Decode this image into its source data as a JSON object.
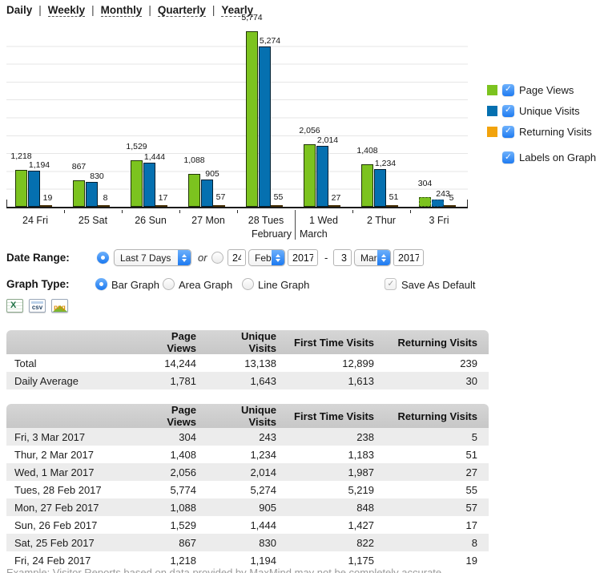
{
  "nav": {
    "separator": "|",
    "items": [
      {
        "label": "Daily",
        "active": true
      },
      {
        "label": "Weekly",
        "active": false
      },
      {
        "label": "Monthly",
        "active": false
      },
      {
        "label": "Quarterly",
        "active": false
      },
      {
        "label": "Yearly",
        "active": false
      }
    ]
  },
  "chart_data": {
    "type": "bar",
    "categories": [
      "24 Fri",
      "25 Sat",
      "26 Sun",
      "27 Mon",
      "28 Tues",
      "1 Wed",
      "2 Thur",
      "3 Fri"
    ],
    "month_labels": [
      "",
      "",
      "",
      "",
      "February",
      "March",
      "",
      ""
    ],
    "series": [
      {
        "name": "Page Views",
        "color": "#7cc31f",
        "values": [
          1218,
          867,
          1529,
          1088,
          5774,
          2056,
          1408,
          304
        ]
      },
      {
        "name": "Unique Visits",
        "color": "#0570b0",
        "values": [
          1194,
          830,
          1444,
          905,
          5274,
          2014,
          1234,
          243
        ]
      },
      {
        "name": "Returning Visits",
        "color": "#f2a30c",
        "values": [
          19,
          8,
          17,
          57,
          55,
          27,
          51,
          5
        ]
      }
    ],
    "ylim": [
      0,
      5880
    ],
    "gridlines": 10,
    "partial_index": 7,
    "labels_on_graph": true,
    "legend_position": "right"
  },
  "legend": {
    "items": [
      {
        "label": "Page Views",
        "color": "#7cc31f",
        "checked": true
      },
      {
        "label": "Unique Visits",
        "color": "#0570b0",
        "checked": true
      },
      {
        "label": "Returning Visits",
        "color": "#f2a30c",
        "checked": true
      }
    ],
    "labels_toggle": {
      "label": "Labels on Graph",
      "checked": true
    }
  },
  "controls": {
    "date_range": {
      "label": "Date Range:",
      "preset_selected": true,
      "preset_value": "Last 7 Days",
      "or_text": "or",
      "custom_selected": false,
      "from": {
        "day": "24",
        "month": "Feb",
        "year": "2017"
      },
      "range_separator": "-",
      "to": {
        "day": "3",
        "month": "Mar",
        "year": "2017"
      }
    },
    "graph_type": {
      "label": "Graph Type:",
      "options": [
        {
          "label": "Bar Graph",
          "selected": true
        },
        {
          "label": "Area Graph",
          "selected": false
        },
        {
          "label": "Line Graph",
          "selected": false
        }
      ],
      "save_default": {
        "label": "Save As Default",
        "checked": true
      }
    },
    "export_icons": [
      {
        "name": "excel",
        "text": ""
      },
      {
        "name": "csv",
        "text": "csv"
      },
      {
        "name": "png",
        "text": "png"
      }
    ]
  },
  "summary_table": {
    "headers": [
      "Page Views",
      "Unique Visits",
      "First Time Visits",
      "Returning Visits"
    ],
    "rows": [
      {
        "label": "Total",
        "values": [
          "14,244",
          "13,138",
          "12,899",
          "239"
        ]
      },
      {
        "label": "Daily Average",
        "values": [
          "1,781",
          "1,643",
          "1,613",
          "30"
        ]
      }
    ]
  },
  "daily_table": {
    "headers": [
      "Page Views",
      "Unique Visits",
      "First Time Visits",
      "Returning Visits"
    ],
    "rows": [
      {
        "label": "Fri, 3 Mar 2017",
        "values": [
          "304",
          "243",
          "238",
          "5"
        ]
      },
      {
        "label": "Thur, 2 Mar 2017",
        "values": [
          "1,408",
          "1,234",
          "1,183",
          "51"
        ]
      },
      {
        "label": "Wed, 1 Mar 2017",
        "values": [
          "2,056",
          "2,014",
          "1,987",
          "27"
        ]
      },
      {
        "label": "Tues, 28 Feb 2017",
        "values": [
          "5,774",
          "5,274",
          "5,219",
          "55"
        ]
      },
      {
        "label": "Mon, 27 Feb 2017",
        "values": [
          "1,088",
          "905",
          "848",
          "57"
        ]
      },
      {
        "label": "Sun, 26 Feb 2017",
        "values": [
          "1,529",
          "1,444",
          "1,427",
          "17"
        ]
      },
      {
        "label": "Sat, 25 Feb 2017",
        "values": [
          "867",
          "830",
          "822",
          "8"
        ]
      },
      {
        "label": "Fri, 24 Feb 2017",
        "values": [
          "1,218",
          "1,194",
          "1,175",
          "19"
        ]
      }
    ]
  },
  "footer_note": "Example: Visitor Reports based on data provided by MaxMind may not be completely accurate."
}
